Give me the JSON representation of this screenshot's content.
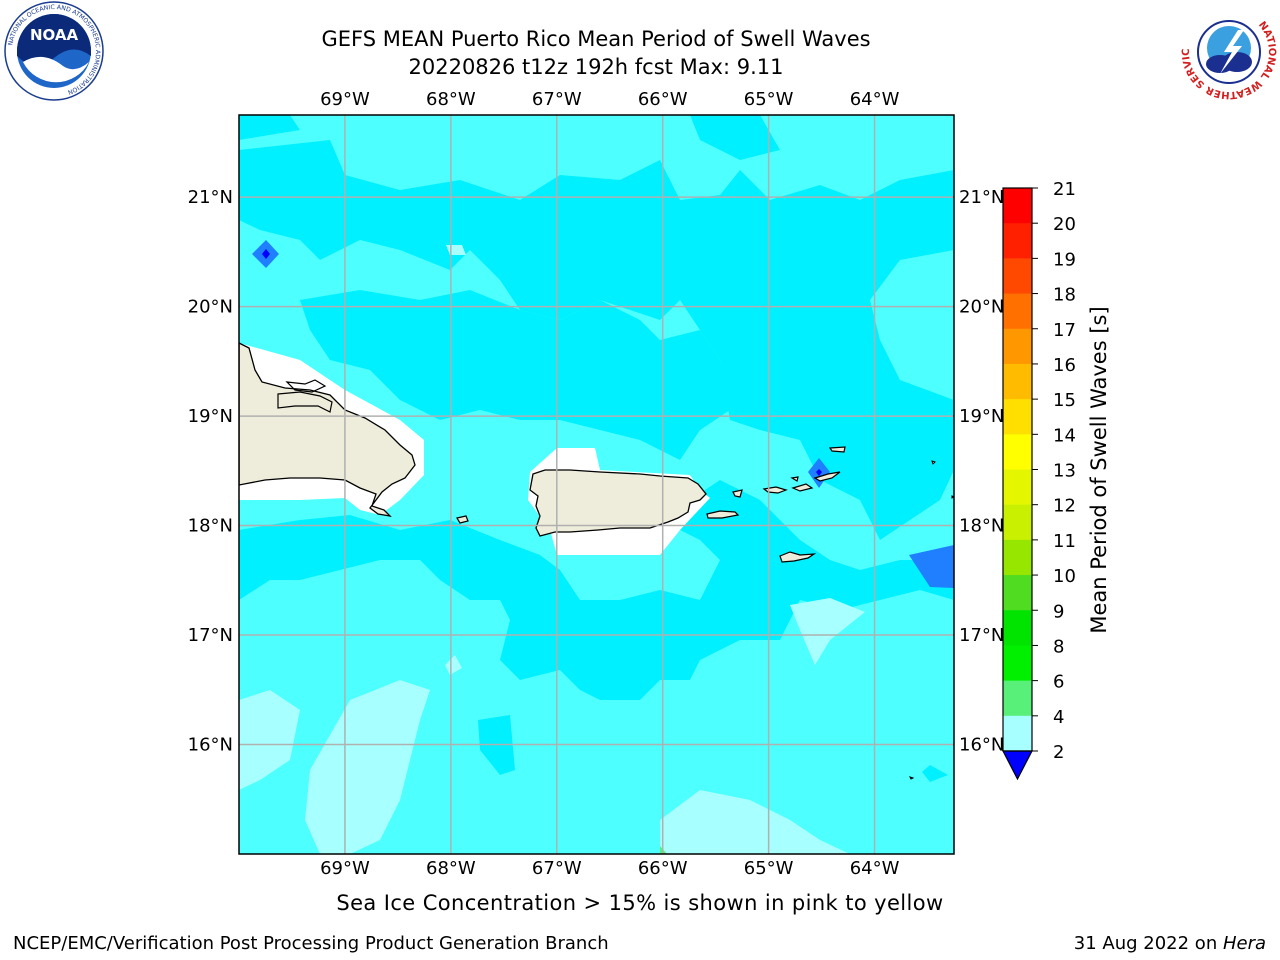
{
  "title": {
    "line1": "GEFS MEAN Puerto Rico Mean Period of Swell Waves",
    "line2": "20220826 t12z 192h fcst   Max: 9.11"
  },
  "map": {
    "lon_ticks": [
      "69°W",
      "68°W",
      "67°W",
      "66°W",
      "65°W",
      "64°W"
    ],
    "lat_ticks": [
      "21°N",
      "20°N",
      "19°N",
      "18°N",
      "17°N",
      "16°N"
    ],
    "lon_extent": [
      -70.0,
      -63.25
    ],
    "lat_extent": [
      15.0,
      21.75
    ]
  },
  "colorbar": {
    "label": "Mean Period of Swell Waves [s]",
    "ticks": [
      "21",
      "20",
      "19",
      "18",
      "17",
      "16",
      "15",
      "14",
      "13",
      "12",
      "11",
      "10",
      "9",
      "8",
      "6",
      "4",
      "2"
    ],
    "colors": [
      "#ff0000",
      "#ff2000",
      "#ff4800",
      "#ff7000",
      "#ff9800",
      "#ffbb00",
      "#ffdf00",
      "#ffff00",
      "#e4f700",
      "#c8f000",
      "#96e600",
      "#50dc20",
      "#00e400",
      "#00f000",
      "#58f078",
      "#a8ffff",
      "#4dffff",
      "#00ffff",
      "#1f7fff",
      "#0000ff"
    ],
    "extend_color": "#0000ff"
  },
  "footnote": "Sea Ice Concentration > 15% is shown in pink to yellow",
  "credits": {
    "left": "NCEP/EMC/Verification Post Processing Product Generation Branch",
    "right_date": "31 Aug 2022 on ",
    "right_host": "Hera"
  },
  "logos": {
    "noaa_text": "NOAA",
    "noaa_ring": "NATIONAL OCEANIC AND ATMOSPHERIC ADMINISTRATION",
    "noaa_ring_bottom": "U.S. DEPARTMENT OF COMMERCE",
    "nws_ring": "NATIONAL WEATHER SERVICE"
  },
  "colors": {
    "field_main": "#4dffff",
    "field_high": "#00f0ff",
    "field_light": "#a8ffff",
    "field_low": "#1f7fff",
    "land": "#eeecda",
    "grid": "#b0b0b0"
  }
}
